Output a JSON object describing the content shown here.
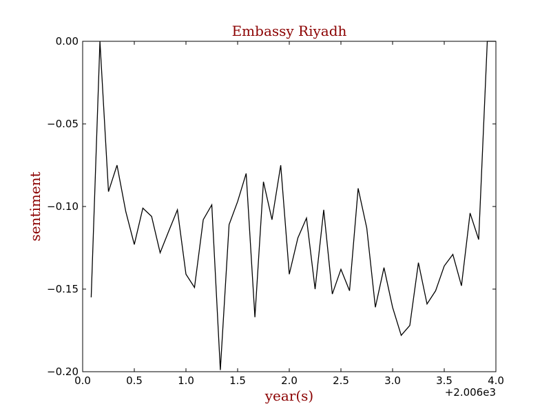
{
  "chart_data": {
    "type": "line",
    "title": "Embassy Riyadh",
    "xlabel": "year(s)",
    "ylabel": "sentiment",
    "x_offset_label": "+2.006e3",
    "xlim": [
      0.0,
      4.0
    ],
    "ylim": [
      -0.2,
      0.0
    ],
    "grid": false,
    "x_ticks": [
      0.0,
      0.5,
      1.0,
      1.5,
      2.0,
      2.5,
      3.0,
      3.5,
      4.0
    ],
    "x_tick_labels": [
      "0.0",
      "0.5",
      "1.0",
      "1.5",
      "2.0",
      "2.5",
      "3.0",
      "3.5",
      "4.0"
    ],
    "y_ticks": [
      0.0,
      -0.05,
      -0.1,
      -0.15,
      -0.2
    ],
    "y_tick_labels": [
      "0.00",
      "−0.05",
      "−0.10",
      "−0.15",
      "−0.20"
    ],
    "colors": {
      "line": "#000000",
      "label_text": "#8b0000"
    },
    "series": [
      {
        "x": [
          0.083,
          0.167,
          0.25,
          0.333,
          0.417,
          0.5,
          0.583,
          0.667,
          0.75,
          0.833,
          0.917,
          1.0,
          1.083,
          1.167,
          1.25,
          1.333,
          1.417,
          1.5,
          1.583,
          1.667,
          1.75,
          1.833,
          1.917,
          2.0,
          2.083,
          2.167,
          2.25,
          2.333,
          2.417,
          2.5,
          2.583,
          2.667,
          2.75,
          2.833,
          2.917,
          3.0,
          3.083,
          3.167,
          3.25,
          3.333,
          3.417,
          3.5,
          3.583,
          3.667,
          3.75,
          3.833,
          3.917,
          4.0
        ],
        "y": [
          -0.155,
          0.0,
          -0.091,
          -0.075,
          -0.103,
          -0.123,
          -0.101,
          -0.106,
          -0.128,
          -0.115,
          -0.102,
          -0.141,
          -0.149,
          -0.108,
          -0.099,
          -0.199,
          -0.111,
          -0.097,
          -0.08,
          -0.167,
          -0.085,
          -0.108,
          -0.075,
          -0.141,
          -0.119,
          -0.107,
          -0.15,
          -0.102,
          -0.153,
          -0.138,
          -0.151,
          -0.089,
          -0.113,
          -0.161,
          -0.137,
          -0.161,
          -0.178,
          -0.172,
          -0.134,
          -0.159,
          -0.151,
          -0.136,
          -0.129,
          -0.148,
          -0.104,
          -0.12,
          0.0,
          0.0
        ]
      }
    ]
  }
}
